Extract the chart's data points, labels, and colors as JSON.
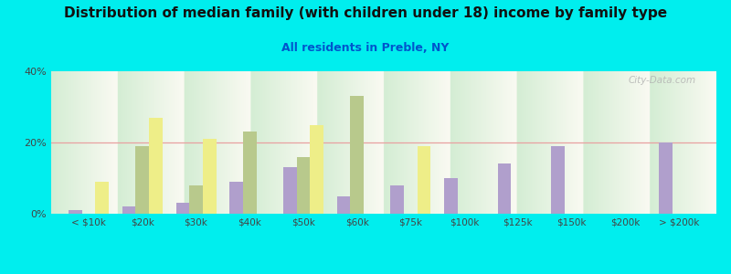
{
  "title": "Distribution of median family (with children under 18) income by family type",
  "subtitle": "All residents in Preble, NY",
  "categories": [
    "< $10k",
    "$20k",
    "$30k",
    "$40k",
    "$50k",
    "$60k",
    "$75k",
    "$100k",
    "$125k",
    "$150k",
    "$200k",
    "> $200k"
  ],
  "married_couple": [
    1,
    2,
    3,
    9,
    13,
    5,
    8,
    10,
    14,
    19,
    0,
    20
  ],
  "male_no_wife": [
    0,
    19,
    8,
    23,
    16,
    33,
    0,
    0,
    0,
    0,
    0,
    0
  ],
  "female_no_husband": [
    9,
    27,
    21,
    0,
    25,
    0,
    19,
    0,
    0,
    0,
    0,
    0
  ],
  "married_color": "#b09fcc",
  "male_color": "#b8c98c",
  "female_color": "#eeee88",
  "bg_outer": "#00eeee",
  "ylim": [
    0,
    40
  ],
  "yticks": [
    0,
    20,
    40
  ],
  "ytick_labels": [
    "0%",
    "20%",
    "40%"
  ],
  "grid_color": "#e8a0a0",
  "bar_width": 0.25,
  "title_fontsize": 11,
  "subtitle_fontsize": 9,
  "subtitle_color": "#0055cc",
  "watermark": "City-Data.com"
}
